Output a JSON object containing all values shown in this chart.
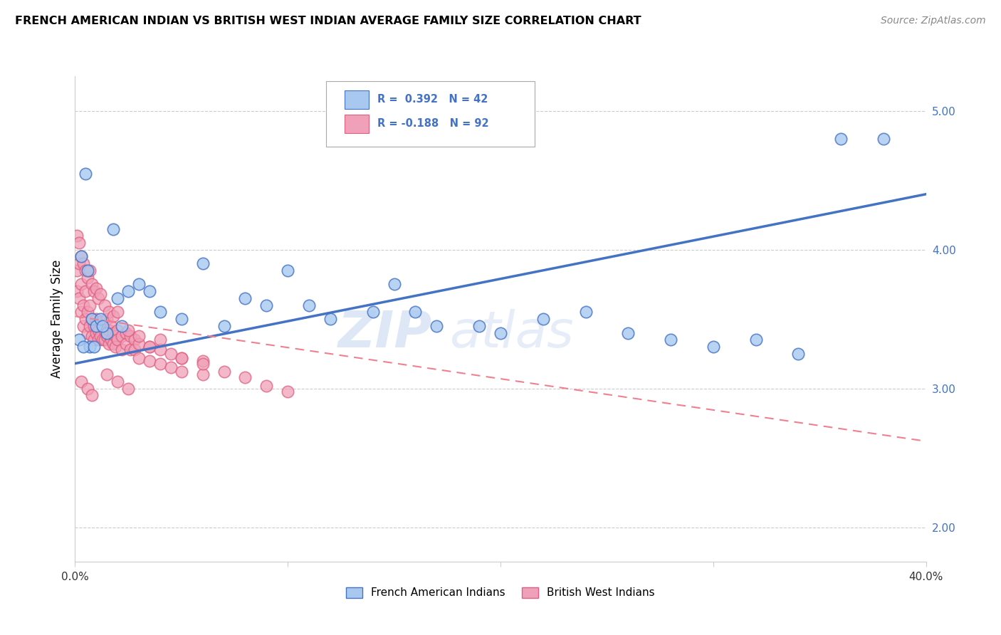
{
  "title": "FRENCH AMERICAN INDIAN VS BRITISH WEST INDIAN AVERAGE FAMILY SIZE CORRELATION CHART",
  "source": "Source: ZipAtlas.com",
  "ylabel": "Average Family Size",
  "xlim": [
    0.0,
    0.4
  ],
  "ylim": [
    1.75,
    5.25
  ],
  "yticks": [
    2.0,
    3.0,
    4.0,
    5.0
  ],
  "xticks": [
    0.0,
    0.1,
    0.2,
    0.3,
    0.4
  ],
  "xticklabels": [
    "0.0%",
    "",
    "",
    "",
    "40.0%"
  ],
  "yticklabels_right": [
    "2.00",
    "3.00",
    "4.00",
    "5.00"
  ],
  "legend_label1": "French American Indians",
  "legend_label2": "British West Indians",
  "color_blue": "#A8C8F0",
  "color_pink": "#F0A0B8",
  "color_blue_line": "#4472C4",
  "color_pink_line": "#F08090",
  "color_blue_dark": "#4472C4",
  "color_pink_dark": "#E06080",
  "watermark_zip": "ZIP",
  "watermark_atlas": "atlas",
  "blue_points_x": [
    0.005,
    0.018,
    0.003,
    0.006,
    0.008,
    0.01,
    0.012,
    0.015,
    0.002,
    0.007,
    0.02,
    0.025,
    0.03,
    0.035,
    0.04,
    0.05,
    0.06,
    0.08,
    0.1,
    0.12,
    0.14,
    0.16,
    0.2,
    0.24,
    0.28,
    0.32,
    0.36,
    0.38,
    0.07,
    0.09,
    0.11,
    0.15,
    0.17,
    0.19,
    0.22,
    0.26,
    0.3,
    0.34,
    0.004,
    0.009,
    0.013,
    0.022
  ],
  "blue_points_y": [
    4.55,
    4.15,
    3.95,
    3.85,
    3.5,
    3.45,
    3.5,
    3.4,
    3.35,
    3.3,
    3.65,
    3.7,
    3.75,
    3.7,
    3.55,
    3.5,
    3.9,
    3.65,
    3.85,
    3.5,
    3.55,
    3.55,
    3.4,
    3.55,
    3.35,
    3.35,
    4.8,
    4.8,
    3.45,
    3.6,
    3.6,
    3.75,
    3.45,
    3.45,
    3.5,
    3.4,
    3.3,
    3.25,
    3.3,
    3.3,
    3.45,
    3.45
  ],
  "pink_points_x": [
    0.001,
    0.001,
    0.002,
    0.002,
    0.003,
    0.003,
    0.004,
    0.004,
    0.005,
    0.005,
    0.006,
    0.006,
    0.007,
    0.007,
    0.008,
    0.008,
    0.009,
    0.009,
    0.01,
    0.01,
    0.011,
    0.011,
    0.012,
    0.012,
    0.013,
    0.013,
    0.014,
    0.014,
    0.015,
    0.015,
    0.016,
    0.016,
    0.017,
    0.017,
    0.018,
    0.018,
    0.019,
    0.019,
    0.02,
    0.02,
    0.022,
    0.022,
    0.024,
    0.024,
    0.026,
    0.026,
    0.028,
    0.028,
    0.03,
    0.03,
    0.035,
    0.035,
    0.04,
    0.04,
    0.045,
    0.045,
    0.05,
    0.05,
    0.06,
    0.06,
    0.001,
    0.002,
    0.003,
    0.004,
    0.005,
    0.006,
    0.007,
    0.008,
    0.009,
    0.01,
    0.011,
    0.012,
    0.014,
    0.016,
    0.018,
    0.02,
    0.025,
    0.03,
    0.035,
    0.04,
    0.05,
    0.06,
    0.07,
    0.08,
    0.09,
    0.1,
    0.003,
    0.006,
    0.008,
    0.015,
    0.02,
    0.025
  ],
  "pink_points_y": [
    3.85,
    3.7,
    3.9,
    3.65,
    3.75,
    3.55,
    3.6,
    3.45,
    3.7,
    3.5,
    3.55,
    3.4,
    3.6,
    3.45,
    3.5,
    3.38,
    3.45,
    3.35,
    3.5,
    3.4,
    3.42,
    3.35,
    3.48,
    3.38,
    3.45,
    3.35,
    3.42,
    3.35,
    3.5,
    3.38,
    3.42,
    3.32,
    3.45,
    3.35,
    3.4,
    3.32,
    3.38,
    3.3,
    3.42,
    3.35,
    3.38,
    3.28,
    3.4,
    3.32,
    3.38,
    3.28,
    3.35,
    3.28,
    3.32,
    3.22,
    3.3,
    3.2,
    3.28,
    3.18,
    3.25,
    3.15,
    3.22,
    3.12,
    3.2,
    3.1,
    4.1,
    4.05,
    3.95,
    3.9,
    3.85,
    3.8,
    3.85,
    3.75,
    3.7,
    3.72,
    3.65,
    3.68,
    3.6,
    3.55,
    3.52,
    3.55,
    3.42,
    3.38,
    3.3,
    3.35,
    3.22,
    3.18,
    3.12,
    3.08,
    3.02,
    2.98,
    3.05,
    3.0,
    2.95,
    3.1,
    3.05,
    3.0
  ],
  "trend_blue_x0": 0.0,
  "trend_blue_y0": 3.18,
  "trend_blue_x1": 0.4,
  "trend_blue_y1": 4.4,
  "trend_pink_x0": 0.0,
  "trend_pink_y0": 3.52,
  "trend_pink_x1": 0.4,
  "trend_pink_y1": 2.62
}
